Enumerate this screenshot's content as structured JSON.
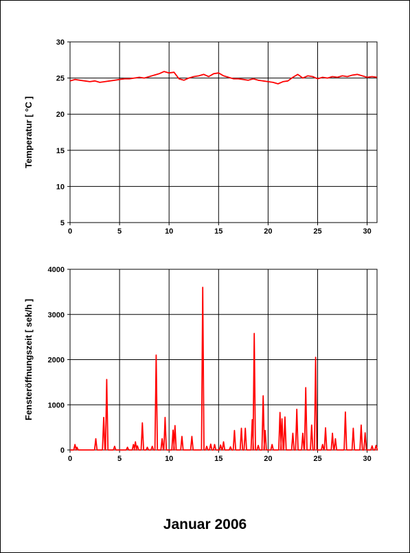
{
  "caption": "Januar 2006",
  "colors": {
    "series": "#ff0000",
    "grid": "#000000",
    "axis": "#000000"
  },
  "chart_data": [
    {
      "type": "line",
      "title": "",
      "xlabel": "",
      "ylabel": "Temperatur [ °C ]",
      "xlim": [
        0,
        31
      ],
      "ylim": [
        5,
        30
      ],
      "x_ticks": [
        0,
        5,
        10,
        15,
        20,
        25,
        30
      ],
      "y_ticks": [
        5,
        10,
        15,
        20,
        25,
        30
      ],
      "grid": true,
      "series": [
        {
          "x": [
            0,
            0.5,
            1,
            1.5,
            2,
            2.5,
            3,
            3.5,
            4,
            4.5,
            5,
            5.5,
            6,
            6.5,
            7,
            7.5,
            8,
            8.5,
            9,
            9.5,
            10,
            10.5,
            11,
            11.5,
            12,
            12.5,
            13,
            13.5,
            14,
            14.5,
            15,
            15.5,
            16,
            16.5,
            17,
            17.5,
            18,
            18.5,
            19,
            19.5,
            20,
            20.5,
            21,
            21.5,
            22,
            22.5,
            23,
            23.5,
            24,
            24.5,
            25,
            25.5,
            26,
            26.5,
            27,
            27.5,
            28,
            28.5,
            29,
            29.5,
            30,
            30.5,
            31
          ],
          "values": [
            24.6,
            24.8,
            24.7,
            24.6,
            24.5,
            24.6,
            24.4,
            24.5,
            24.6,
            24.7,
            24.8,
            24.9,
            24.9,
            25.0,
            25.1,
            25.0,
            25.2,
            25.4,
            25.6,
            25.9,
            25.7,
            25.8,
            24.9,
            24.7,
            25.0,
            25.2,
            25.3,
            25.5,
            25.2,
            25.6,
            25.7,
            25.3,
            25.1,
            24.9,
            24.9,
            24.8,
            24.7,
            24.9,
            24.7,
            24.6,
            24.5,
            24.4,
            24.2,
            24.5,
            24.6,
            25.1,
            25.5,
            25.0,
            25.3,
            25.2,
            24.9,
            25.1,
            25.0,
            25.2,
            25.1,
            25.3,
            25.2,
            25.4,
            25.5,
            25.3,
            25.1,
            25.2,
            25.1
          ]
        }
      ]
    },
    {
      "type": "bar",
      "title": "",
      "xlabel": "",
      "ylabel": "Fensteröffnungszeit [ sek/h ]",
      "xlim": [
        0,
        31
      ],
      "ylim": [
        0,
        4000
      ],
      "x_ticks": [
        0,
        5,
        10,
        15,
        20,
        25,
        30
      ],
      "y_ticks": [
        0,
        1000,
        2000,
        3000,
        4000
      ],
      "grid": true,
      "series": [
        {
          "x": [
            0.5,
            0.7,
            2.6,
            3.4,
            3.7,
            4.5,
            5.8,
            6.4,
            6.6,
            6.8,
            7.3,
            7.8,
            8.3,
            8.7,
            9.3,
            9.6,
            10.4,
            10.6,
            11.3,
            12.3,
            13.4,
            13.8,
            14.2,
            14.6,
            15.2,
            15.5,
            16.2,
            16.6,
            17.3,
            17.7,
            18.4,
            18.6,
            19.0,
            19.5,
            19.7,
            20.4,
            21.2,
            21.4,
            21.7,
            22.5,
            22.9,
            23.5,
            23.8,
            24.4,
            24.8,
            25.5,
            25.8,
            26.5,
            26.8,
            27.8,
            28.6,
            29.4,
            29.8,
            30.5,
            30.9
          ],
          "values": [
            120,
            60,
            250,
            720,
            1560,
            80,
            60,
            120,
            180,
            90,
            600,
            60,
            80,
            2100,
            250,
            720,
            440,
            540,
            300,
            300,
            3600,
            80,
            130,
            120,
            110,
            180,
            70,
            430,
            480,
            480,
            670,
            2580,
            100,
            1200,
            430,
            120,
            830,
            690,
            730,
            370,
            900,
            370,
            1380,
            550,
            2050,
            120,
            490,
            370,
            250,
            840,
            480,
            550,
            380,
            90,
            100
          ]
        }
      ]
    }
  ]
}
